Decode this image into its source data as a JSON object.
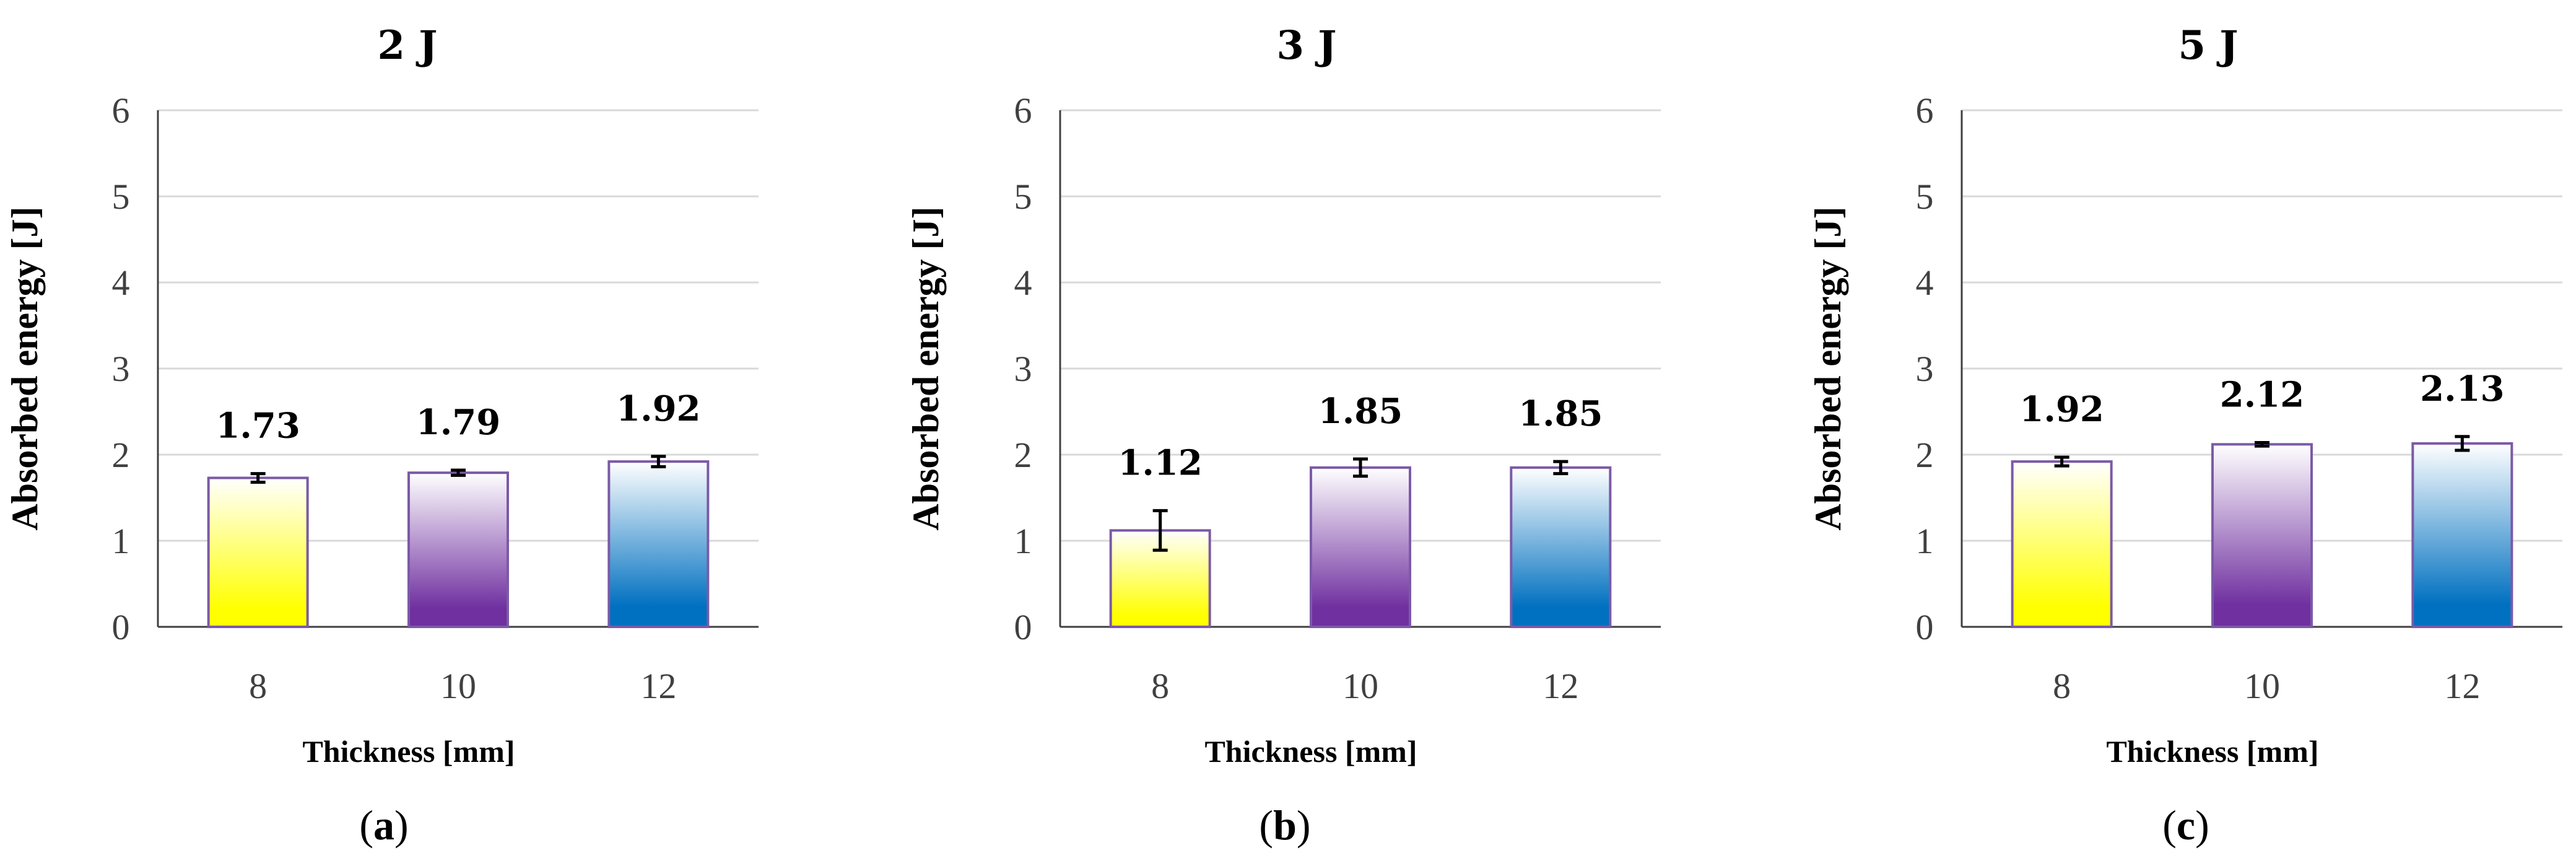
{
  "chart_data": [
    {
      "type": "bar",
      "title": "2 J",
      "categories": [
        "8",
        "10",
        "12"
      ],
      "values": [
        1.73,
        1.79,
        1.92
      ],
      "error": [
        0.05,
        0.03,
        0.06
      ],
      "value_labels": [
        "1.73",
        "1.79",
        "1.92"
      ],
      "xlabel": "Thickness [mm]",
      "ylabel": "Absorbed energy [J]",
      "ylim": [
        0,
        6
      ],
      "yticks": [
        "0",
        "1",
        "2",
        "3",
        "4",
        "5",
        "6"
      ],
      "grid": true,
      "panel_label": {
        "open": "(",
        "letter": "a",
        "close": ")"
      }
    },
    {
      "type": "bar",
      "title": "3 J",
      "categories": [
        "8",
        "10",
        "12"
      ],
      "values": [
        1.12,
        1.85,
        1.85
      ],
      "error": [
        0.23,
        0.1,
        0.07
      ],
      "value_labels": [
        "1.12",
        "1.85",
        "1.85"
      ],
      "xlabel": "Thickness [mm]",
      "ylabel": "Absorbed energy [J]",
      "ylim": [
        0,
        6
      ],
      "yticks": [
        "0",
        "1",
        "2",
        "3",
        "4",
        "5",
        "6"
      ],
      "grid": true,
      "panel_label": {
        "open": "(",
        "letter": "b",
        "close": ")"
      }
    },
    {
      "type": "bar",
      "title": "5 J",
      "categories": [
        "8",
        "10",
        "12"
      ],
      "values": [
        1.92,
        2.12,
        2.13
      ],
      "error": [
        0.05,
        0.02,
        0.08
      ],
      "value_labels": [
        "1.92",
        "2.12",
        "2.13"
      ],
      "xlabel": "Thickness [mm]",
      "ylabel": "Absorbed energy [J]",
      "ylim": [
        0,
        6
      ],
      "yticks": [
        "0",
        "1",
        "2",
        "3",
        "4",
        "5",
        "6"
      ],
      "grid": true,
      "panel_label": {
        "open": "(",
        "letter": "c",
        "close": ")"
      }
    }
  ],
  "colors": {
    "bar_bottom": [
      "#ffff00",
      "#7030a0",
      "#0070c0"
    ],
    "bar_top": "#ffffff",
    "bar_border": "#7b5aa6",
    "grid": "#d9d9d9",
    "axis": "#404040",
    "error_bar": "#000000"
  }
}
